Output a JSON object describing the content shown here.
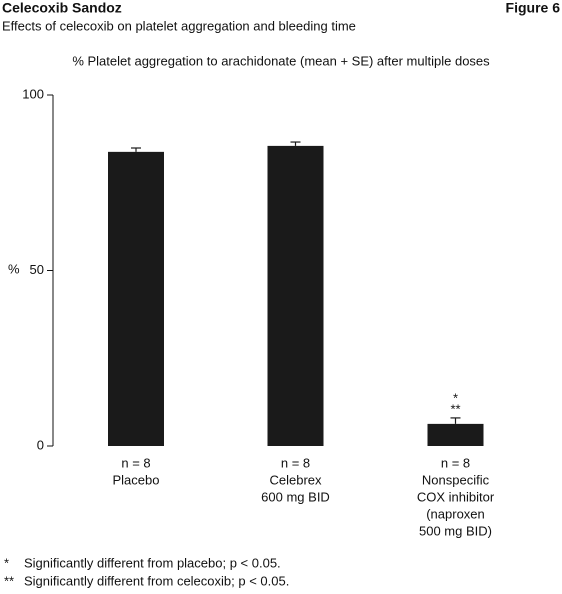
{
  "header": {
    "title": "Celecoxib Sandoz",
    "figure": "Figure 6",
    "subtitle": "Effects of celecoxib on platelet aggregation and bleeding time"
  },
  "chart_data": {
    "type": "bar",
    "title": "% Platelet aggregation to arachidonate (mean + SE) after multiple doses",
    "ylabel": "%",
    "categories": [
      [
        "n = 8",
        "Placebo"
      ],
      [
        "n = 8",
        "Celebrex",
        "600 mg BID"
      ],
      [
        "n = 8",
        "Nonspecific",
        "COX inhibitor",
        "(naproxen",
        "500 mg BID)"
      ]
    ],
    "values": [
      83.8,
      85.5,
      6.3
    ],
    "errors": [
      1.1,
      1.1,
      1.7
    ],
    "color": "#1a1a1a",
    "ylim": [
      0,
      100
    ],
    "yticks": [
      0,
      50,
      100
    ],
    "annotations": [
      "*",
      "**"
    ],
    "footnotes": [
      {
        "symbol": "*",
        "text": "Significantly different from placebo; p < 0.05."
      },
      {
        "symbol": "**",
        "text": "Significantly different from celecoxib; p < 0.05."
      }
    ]
  }
}
